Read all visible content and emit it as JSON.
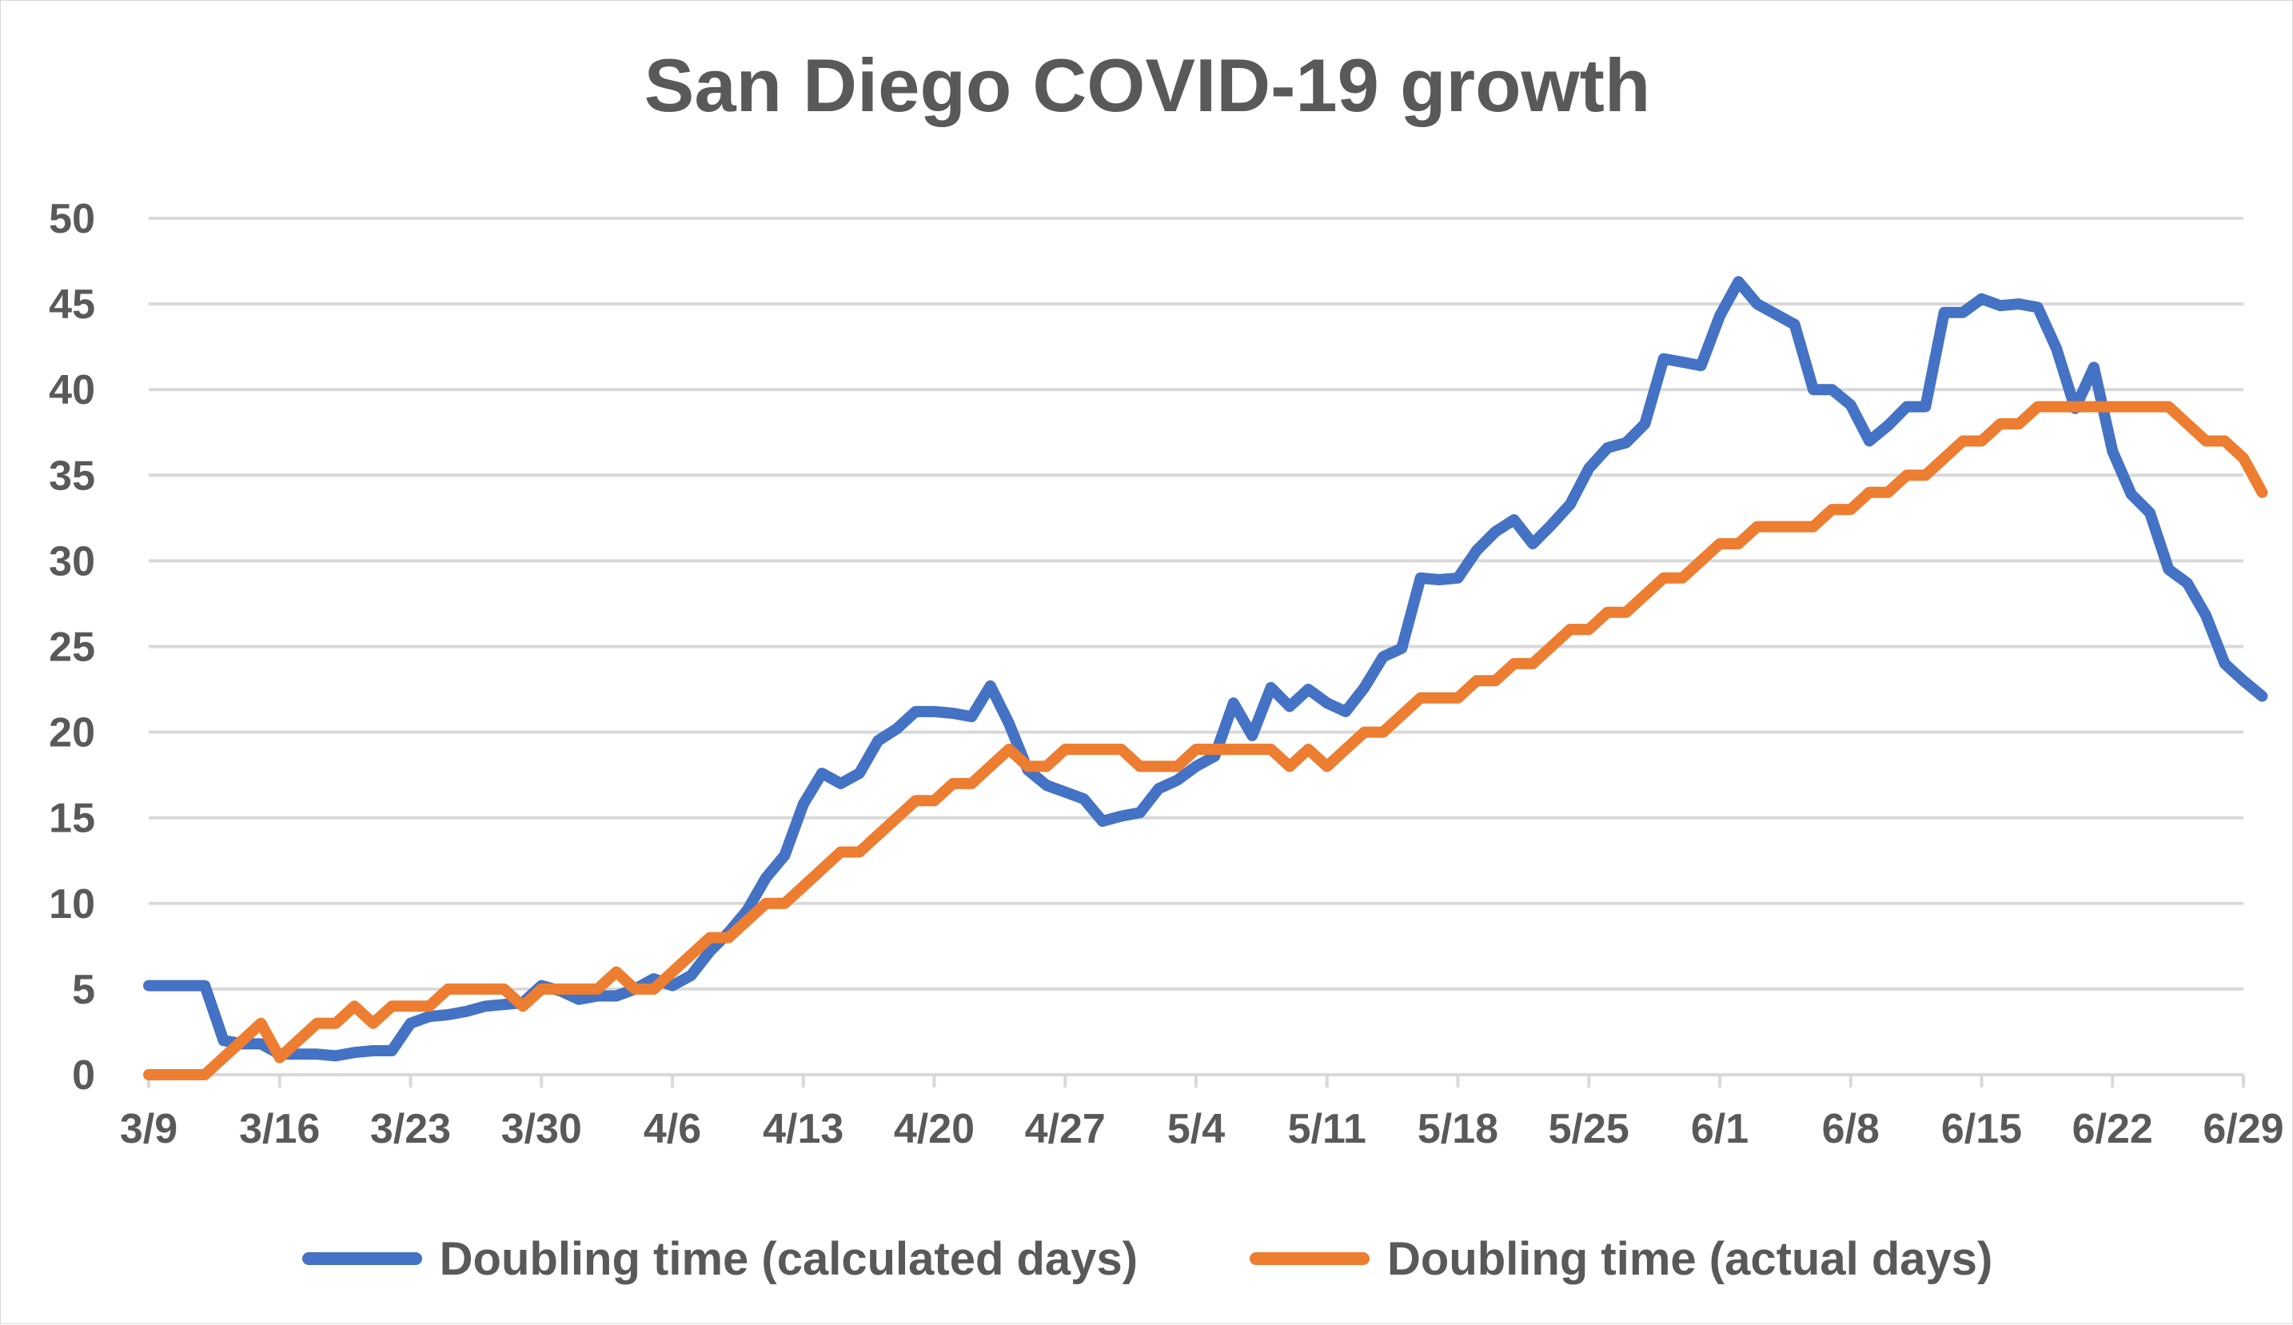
{
  "chart_data": {
    "type": "line",
    "title": "San Diego COVID-19 growth",
    "xlabel": "",
    "ylabel": "",
    "ylim": [
      0,
      50
    ],
    "y_ticks": [
      0,
      5,
      10,
      15,
      20,
      25,
      30,
      35,
      40,
      45,
      50
    ],
    "x_tick_labels": [
      "3/9",
      "3/16",
      "3/23",
      "3/30",
      "4/6",
      "4/13",
      "4/20",
      "4/27",
      "5/4",
      "5/11",
      "5/18",
      "5/25",
      "6/1",
      "6/8",
      "6/15",
      "6/22",
      "6/29"
    ],
    "x_tick_positions": [
      0,
      7,
      14,
      21,
      28,
      35,
      42,
      49,
      56,
      63,
      70,
      77,
      84,
      91,
      98,
      105,
      112
    ],
    "x_range": [
      0,
      112
    ],
    "grid": "horizontal",
    "legend_position": "bottom",
    "series": [
      {
        "name": "Doubling time (calculated days)",
        "color": "#4472C4",
        "points": [
          [
            0,
            5.2
          ],
          [
            1,
            5.2
          ],
          [
            2,
            5.2
          ],
          [
            3,
            5.2
          ],
          [
            4,
            2.0
          ],
          [
            5,
            1.8
          ],
          [
            6,
            1.8
          ],
          [
            7,
            1.2
          ],
          [
            8,
            1.2
          ],
          [
            9,
            1.2
          ],
          [
            10,
            1.1
          ],
          [
            11,
            1.3
          ],
          [
            12,
            1.4
          ],
          [
            13,
            1.4
          ],
          [
            14,
            3.0
          ],
          [
            15,
            3.4
          ],
          [
            16,
            3.5
          ],
          [
            17,
            3.7
          ],
          [
            18,
            4.0
          ],
          [
            19,
            4.1
          ],
          [
            20,
            4.2
          ],
          [
            21,
            5.2
          ],
          [
            22,
            4.9
          ],
          [
            23,
            4.4
          ],
          [
            24,
            4.6
          ],
          [
            25,
            4.6
          ],
          [
            26,
            5.0
          ],
          [
            27,
            5.6
          ],
          [
            28,
            5.2
          ],
          [
            29,
            5.8
          ],
          [
            30,
            7.2
          ],
          [
            31,
            8.3
          ],
          [
            32,
            9.6
          ],
          [
            33,
            11.5
          ],
          [
            34,
            12.8
          ],
          [
            35,
            15.8
          ],
          [
            36,
            17.6
          ],
          [
            37,
            17.0
          ],
          [
            38,
            17.6
          ],
          [
            39,
            19.5
          ],
          [
            40,
            20.2
          ],
          [
            41,
            21.2
          ],
          [
            42,
            21.2
          ],
          [
            43,
            21.1
          ],
          [
            44,
            20.9
          ],
          [
            45,
            22.7
          ],
          [
            46,
            20.5
          ],
          [
            47,
            17.8
          ],
          [
            48,
            16.9
          ],
          [
            49,
            16.5
          ],
          [
            50,
            16.1
          ],
          [
            51,
            14.8
          ],
          [
            52,
            15.1
          ],
          [
            53,
            15.3
          ],
          [
            54,
            16.7
          ],
          [
            55,
            17.2
          ],
          [
            56,
            18.0
          ],
          [
            57,
            18.6
          ],
          [
            58,
            21.7
          ],
          [
            59,
            19.8
          ],
          [
            60,
            22.6
          ],
          [
            61,
            21.5
          ],
          [
            62,
            22.5
          ],
          [
            63,
            21.7
          ],
          [
            64,
            21.2
          ],
          [
            65,
            22.6
          ],
          [
            66,
            24.4
          ],
          [
            67,
            24.9
          ],
          [
            68,
            29.0
          ],
          [
            69,
            28.9
          ],
          [
            70,
            29.0
          ],
          [
            71,
            30.6
          ],
          [
            72,
            31.7
          ],
          [
            73,
            32.4
          ],
          [
            74,
            31.0
          ],
          [
            75,
            32.1
          ],
          [
            76,
            33.3
          ],
          [
            77,
            35.4
          ],
          [
            78,
            36.6
          ],
          [
            79,
            36.9
          ],
          [
            80,
            38.0
          ],
          [
            81,
            41.8
          ],
          [
            82,
            41.6
          ],
          [
            83,
            41.4
          ],
          [
            84,
            44.3
          ],
          [
            85,
            46.3
          ],
          [
            86,
            45.0
          ],
          [
            87,
            44.4
          ],
          [
            88,
            43.8
          ],
          [
            89,
            40.0
          ],
          [
            90,
            40.0
          ],
          [
            91,
            39.1
          ],
          [
            92,
            37.0
          ],
          [
            93,
            37.9
          ],
          [
            94,
            39.0
          ],
          [
            95,
            39.0
          ],
          [
            96,
            44.5
          ],
          [
            97,
            44.5
          ],
          [
            98,
            45.3
          ],
          [
            99,
            44.9
          ],
          [
            100,
            45.0
          ],
          [
            101,
            44.8
          ],
          [
            102,
            42.4
          ],
          [
            103,
            38.9
          ],
          [
            104,
            41.3
          ],
          [
            105,
            36.4
          ],
          [
            106,
            33.9
          ],
          [
            107,
            32.8
          ],
          [
            108,
            29.5
          ],
          [
            109,
            28.7
          ],
          [
            110,
            26.8
          ],
          [
            111,
            24.0
          ],
          [
            112,
            23.0
          ],
          [
            113,
            22.1
          ]
        ]
      },
      {
        "name": "Doubling time (actual days)",
        "color": "#ED7D31",
        "points": [
          [
            0,
            0
          ],
          [
            1,
            0
          ],
          [
            2,
            0
          ],
          [
            3,
            0
          ],
          [
            4,
            1
          ],
          [
            5,
            2
          ],
          [
            6,
            3
          ],
          [
            7,
            1
          ],
          [
            8,
            2
          ],
          [
            9,
            3
          ],
          [
            10,
            3
          ],
          [
            11,
            4
          ],
          [
            12,
            3
          ],
          [
            13,
            4
          ],
          [
            14,
            4
          ],
          [
            15,
            4
          ],
          [
            16,
            5
          ],
          [
            17,
            5
          ],
          [
            18,
            5
          ],
          [
            19,
            5
          ],
          [
            20,
            4
          ],
          [
            21,
            5
          ],
          [
            22,
            5
          ],
          [
            23,
            5
          ],
          [
            24,
            5
          ],
          [
            25,
            6
          ],
          [
            26,
            5
          ],
          [
            27,
            5
          ],
          [
            28,
            6
          ],
          [
            29,
            7
          ],
          [
            30,
            8
          ],
          [
            31,
            8
          ],
          [
            32,
            9
          ],
          [
            33,
            10
          ],
          [
            34,
            10
          ],
          [
            35,
            11
          ],
          [
            36,
            12
          ],
          [
            37,
            13
          ],
          [
            38,
            13
          ],
          [
            39,
            14
          ],
          [
            40,
            15
          ],
          [
            41,
            16
          ],
          [
            42,
            16
          ],
          [
            43,
            17
          ],
          [
            44,
            17
          ],
          [
            45,
            18
          ],
          [
            46,
            19
          ],
          [
            47,
            18
          ],
          [
            48,
            18
          ],
          [
            49,
            19
          ],
          [
            50,
            19
          ],
          [
            51,
            19
          ],
          [
            52,
            19
          ],
          [
            53,
            18
          ],
          [
            54,
            18
          ],
          [
            55,
            18
          ],
          [
            56,
            19
          ],
          [
            57,
            19
          ],
          [
            58,
            19
          ],
          [
            59,
            19
          ],
          [
            60,
            19
          ],
          [
            61,
            18
          ],
          [
            62,
            19
          ],
          [
            63,
            18
          ],
          [
            64,
            19
          ],
          [
            65,
            20
          ],
          [
            66,
            20
          ],
          [
            67,
            21
          ],
          [
            68,
            22
          ],
          [
            69,
            22
          ],
          [
            70,
            22
          ],
          [
            71,
            23
          ],
          [
            72,
            23
          ],
          [
            73,
            24
          ],
          [
            74,
            24
          ],
          [
            75,
            25
          ],
          [
            76,
            26
          ],
          [
            77,
            26
          ],
          [
            78,
            27
          ],
          [
            79,
            27
          ],
          [
            80,
            28
          ],
          [
            81,
            29
          ],
          [
            82,
            29
          ],
          [
            83,
            30
          ],
          [
            84,
            31
          ],
          [
            85,
            31
          ],
          [
            86,
            32
          ],
          [
            87,
            32
          ],
          [
            88,
            32
          ],
          [
            89,
            32
          ],
          [
            90,
            33
          ],
          [
            91,
            33
          ],
          [
            92,
            34
          ],
          [
            93,
            34
          ],
          [
            94,
            35
          ],
          [
            95,
            35
          ],
          [
            96,
            36
          ],
          [
            97,
            37
          ],
          [
            98,
            37
          ],
          [
            99,
            38
          ],
          [
            100,
            38
          ],
          [
            101,
            39
          ],
          [
            102,
            39
          ],
          [
            103,
            39
          ],
          [
            104,
            39
          ],
          [
            105,
            39
          ],
          [
            106,
            39
          ],
          [
            107,
            39
          ],
          [
            108,
            39
          ],
          [
            109,
            38
          ],
          [
            110,
            37
          ],
          [
            111,
            37
          ],
          [
            112,
            36
          ],
          [
            113,
            34
          ]
        ]
      }
    ]
  }
}
